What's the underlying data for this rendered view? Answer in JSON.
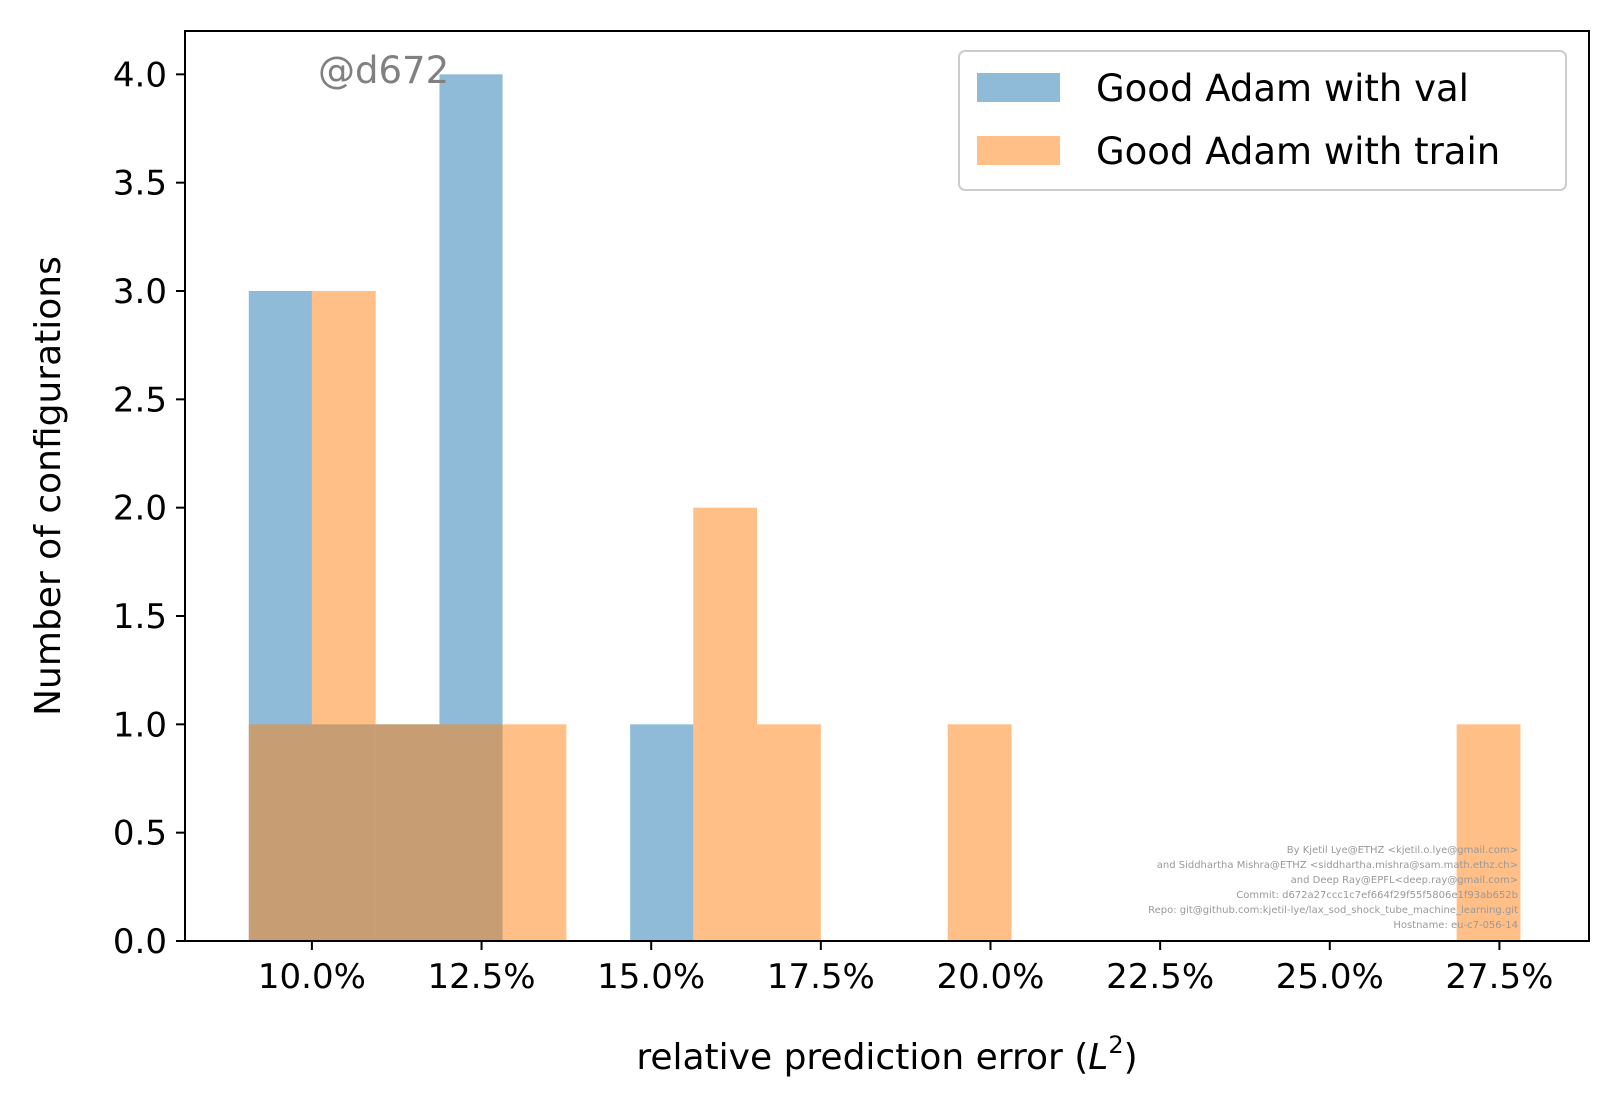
{
  "chart_data": {
    "type": "bar",
    "subtype": "overlapping-histogram",
    "xlabel_text": "relative prediction error (",
    "xlabel_math": "L",
    "xlabel_sup": "2",
    "xlabel_close": ")",
    "ylabel": "Number of configurations",
    "xlim": [
      0.0813,
      0.2882
    ],
    "ylim": [
      0,
      4.2
    ],
    "x_ticks": [
      0.1,
      0.125,
      0.15,
      0.175,
      0.2,
      0.225,
      0.25,
      0.275
    ],
    "x_tick_labels": [
      "10.0%",
      "12.5%",
      "15.0%",
      "17.5%",
      "20.0%",
      "22.5%",
      "25.0%",
      "27.5%"
    ],
    "y_ticks": [
      0,
      0.5,
      1,
      1.5,
      2,
      2.5,
      3,
      3.5,
      4
    ],
    "y_tick_labels": [
      "0.0",
      "0.5",
      "1.0",
      "1.5",
      "2.0",
      "2.5",
      "3.0",
      "3.5",
      "4.0"
    ],
    "grid": false,
    "legend_position": "top-right",
    "series": [
      {
        "name": "Good Adam with val",
        "color": "#1f77b4",
        "opacity": 0.5,
        "bins": [
          {
            "x0": 0.0907,
            "x1": 0.1,
            "count": 3
          },
          {
            "x0": 0.1,
            "x1": 0.1094,
            "count": 1
          },
          {
            "x0": 0.1094,
            "x1": 0.1188,
            "count": 1
          },
          {
            "x0": 0.1188,
            "x1": 0.1281,
            "count": 4
          },
          {
            "x0": 0.1469,
            "x1": 0.1562,
            "count": 1
          }
        ]
      },
      {
        "name": "Good Adam with train",
        "color": "#ff7f0e",
        "opacity": 0.5,
        "bins": [
          {
            "x0": 0.0907,
            "x1": 0.1,
            "count": 1
          },
          {
            "x0": 0.1,
            "x1": 0.1094,
            "count": 3
          },
          {
            "x0": 0.1094,
            "x1": 0.1188,
            "count": 1
          },
          {
            "x0": 0.1188,
            "x1": 0.1281,
            "count": 1
          },
          {
            "x0": 0.1281,
            "x1": 0.1375,
            "count": 1
          },
          {
            "x0": 0.1562,
            "x1": 0.1656,
            "count": 2
          },
          {
            "x0": 0.1656,
            "x1": 0.175,
            "count": 1
          },
          {
            "x0": 0.1937,
            "x1": 0.2031,
            "count": 1
          },
          {
            "x0": 0.2687,
            "x1": 0.2781,
            "count": 1
          }
        ]
      }
    ]
  },
  "watermark": "@d672",
  "credits": [
    "By Kjetil Lye@ETHZ <kjetil.o.lye@gmail.com>",
    "and Siddhartha Mishra@ETHZ <siddhartha.mishra@sam.math.ethz.ch>",
    "and Deep Ray@EPFL<deep.ray@gmail.com>",
    "Commit: d672a27ccc1c7ef664f29f55f5806e1f93ab652b",
    "Repo: git@github.com:kjetil-lye/lax_sod_shock_tube_machine_learning.git",
    "Hostname: eu-c7-056-14"
  ]
}
